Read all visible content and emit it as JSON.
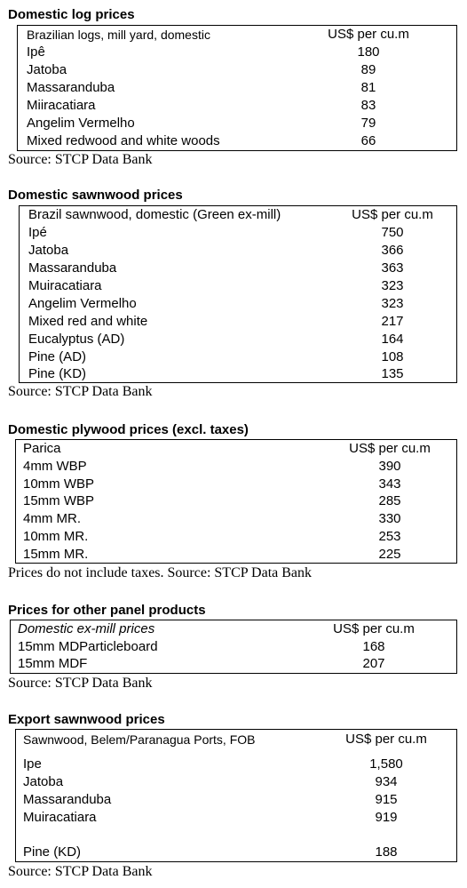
{
  "log": {
    "title": "Domestic log prices",
    "header_label": "Brazilian logs, mill yard, domestic",
    "header_unit": "US$ per cu.m",
    "rows": [
      {
        "name": "Ipê",
        "value": "180"
      },
      {
        "name": "Jatoba",
        "value": "89"
      },
      {
        "name": "Massaranduba",
        "value": "81"
      },
      {
        "name": "Miiracatiara",
        "value": "83"
      },
      {
        "name": "Angelim Vermelho",
        "value": "79"
      },
      {
        "name": "Mixed redwood and white woods",
        "value": "66"
      }
    ],
    "source": "Source: STCP Data Bank"
  },
  "sawn": {
    "title": "Domestic sawnwood prices",
    "header_label": "Brazil sawnwood, domestic (Green ex-mill)",
    "header_unit": "US$ per cu.m",
    "rows": [
      {
        "name": "Ipé",
        "value": "750"
      },
      {
        "name": "Jatoba",
        "value": "366"
      },
      {
        "name": "Massaranduba",
        "value": "363"
      },
      {
        "name": "Muiracatiara",
        "value": "323"
      },
      {
        "name": "Angelim Vermelho",
        "value": "323"
      },
      {
        "name": "Mixed red and white",
        "value": "217"
      },
      {
        "name": "Eucalyptus (AD)",
        "value": "164"
      },
      {
        "name": "Pine (AD)",
        "value": "108"
      },
      {
        "name": "Pine (KD)",
        "value": "135"
      }
    ],
    "source": "Source: STCP Data Bank"
  },
  "ply": {
    "title": "Domestic plywood prices (excl. taxes)",
    "header_label": "Parica",
    "header_unit": "US$ per cu.m",
    "rows": [
      {
        "name": "4mm WBP",
        "value": "390"
      },
      {
        "name": "10mm WBP",
        "value": "343"
      },
      {
        "name": "15mm WBP",
        "value": "285"
      },
      {
        "name": "4mm MR.",
        "value": "330"
      },
      {
        "name": "10mm MR.",
        "value": "253"
      },
      {
        "name": "15mm MR.",
        "value": "225"
      }
    ],
    "source": "Prices do not include taxes. Source: STCP Data Bank"
  },
  "panel": {
    "title": "Prices for other panel products",
    "header_label": "Domestic ex-mill prices",
    "header_unit": "US$ per cu.m",
    "rows": [
      {
        "name": "15mm MDParticleboard",
        "value": "168"
      },
      {
        "name": "15mm MDF",
        "value": "207"
      }
    ],
    "source": "Source: STCP Data Bank"
  },
  "export": {
    "title": "Export sawnwood prices",
    "header_label": "Sawnwood, Belem/Paranagua Ports, FOB",
    "header_unit": "US$ per cu.m",
    "rows": [
      {
        "name": "Ipe",
        "value": "1,580"
      },
      {
        "name": "Jatoba",
        "value": "934"
      },
      {
        "name": "Massaranduba",
        "value": "915"
      },
      {
        "name": "Muiracatiara",
        "value": "919"
      },
      {
        "name": "Pine (KD)",
        "value": "188"
      }
    ],
    "source": "Source: STCP Data Bank"
  }
}
